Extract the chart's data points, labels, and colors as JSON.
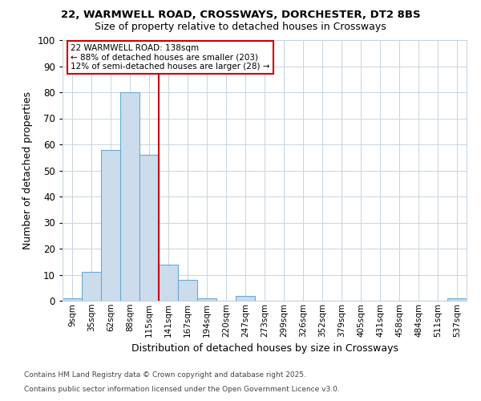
{
  "title1": "22, WARMWELL ROAD, CROSSWAYS, DORCHESTER, DT2 8BS",
  "title2": "Size of property relative to detached houses in Crossways",
  "xlabel": "Distribution of detached houses by size in Crossways",
  "ylabel": "Number of detached properties",
  "bins": [
    "9sqm",
    "35sqm",
    "62sqm",
    "88sqm",
    "115sqm",
    "141sqm",
    "167sqm",
    "194sqm",
    "220sqm",
    "247sqm",
    "273sqm",
    "299sqm",
    "326sqm",
    "352sqm",
    "379sqm",
    "405sqm",
    "431sqm",
    "458sqm",
    "484sqm",
    "511sqm",
    "537sqm"
  ],
  "values": [
    1,
    11,
    58,
    80,
    56,
    14,
    8,
    1,
    0,
    2,
    0,
    0,
    0,
    0,
    0,
    0,
    0,
    0,
    0,
    0,
    1
  ],
  "bar_color": "#ccdcec",
  "bar_edge_color": "#6aaad4",
  "vline_x": 4.5,
  "vline_color": "#cc0000",
  "annotation_title": "22 WARMWELL ROAD: 138sqm",
  "annotation_line1": "← 88% of detached houses are smaller (203)",
  "annotation_line2": "12% of semi-detached houses are larger (28) →",
  "annotation_box_color": "#cc0000",
  "ylim": [
    0,
    100
  ],
  "yticks": [
    0,
    10,
    20,
    30,
    40,
    50,
    60,
    70,
    80,
    90,
    100
  ],
  "footnote1": "Contains HM Land Registry data © Crown copyright and database right 2025.",
  "footnote2": "Contains public sector information licensed under the Open Government Licence v3.0.",
  "bg_color": "#ffffff",
  "plot_bg_color": "#ffffff",
  "grid_color": "#c8d4e0"
}
